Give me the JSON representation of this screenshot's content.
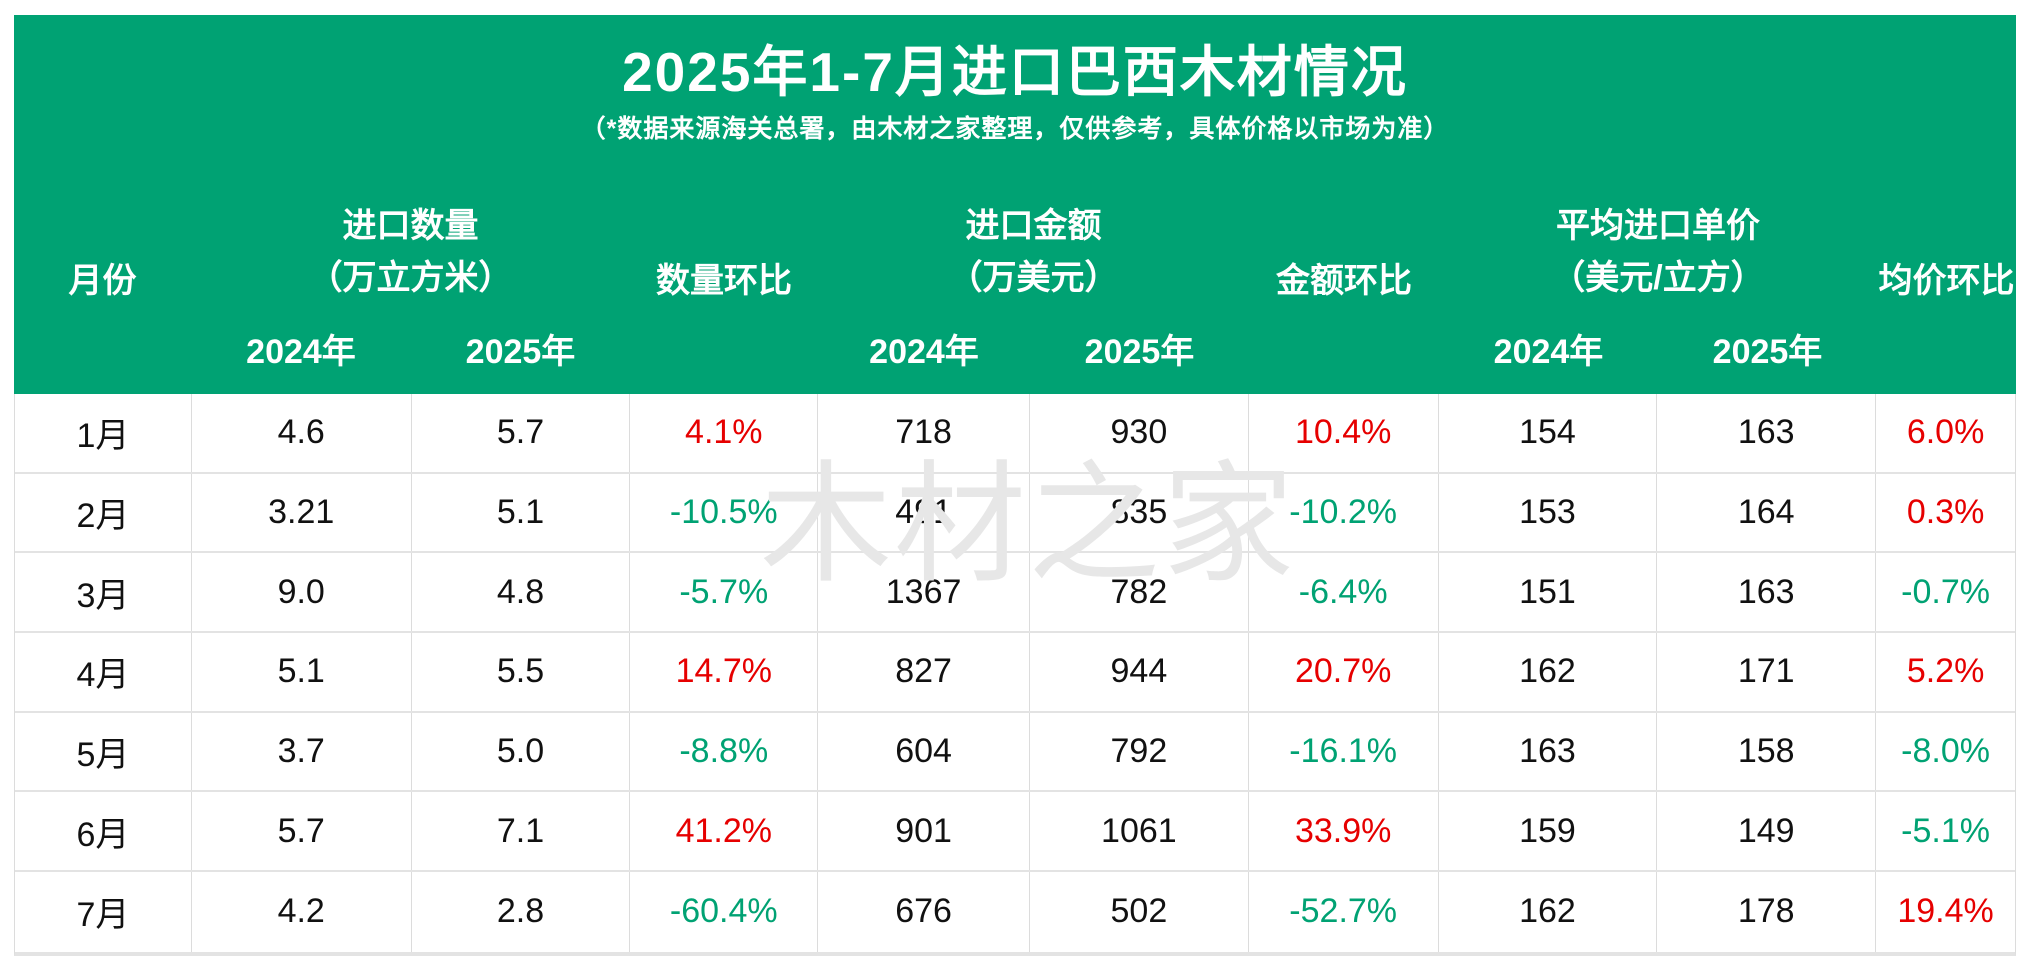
{
  "page": {
    "title": "2025年1-7月进口巴西木材情况",
    "subtitle": "（*数据来源海关总署，由木材之家整理，仅供参考，具体价格以市场为准）",
    "watermark": "木材之家"
  },
  "colors": {
    "header_green": "#00a273",
    "increase_red": "#e60000",
    "decrease_green": "#00a273",
    "grid_line": "#dcdcdc",
    "body_text": "#111111"
  },
  "header": {
    "month": "月份",
    "groups": [
      {
        "label": "进口数量",
        "unit": "（万立方米）"
      },
      {
        "label": "进口金额",
        "unit": "（万美元）"
      },
      {
        "label": "平均进口单价",
        "unit": "（美元/立方）"
      }
    ],
    "ratios": [
      "数量环比",
      "金额环比",
      "均价环比"
    ],
    "years": [
      "2024年",
      "2025年"
    ]
  },
  "rows": [
    {
      "month": "1月",
      "q24": "4.6",
      "q25": "5.7",
      "qmom": "4.1%",
      "a24": "718",
      "a25": "930",
      "amom": "10.4%",
      "p24": "154",
      "p25": "163",
      "pmom": "6.0%"
    },
    {
      "month": "2月",
      "q24": "3.21",
      "q25": "5.1",
      "qmom": "-10.5%",
      "a24": "491",
      "a25": "835",
      "amom": "-10.2%",
      "p24": "153",
      "p25": "164",
      "pmom": "0.3%"
    },
    {
      "month": "3月",
      "q24": "9.0",
      "q25": "4.8",
      "qmom": "-5.7%",
      "a24": "1367",
      "a25": "782",
      "amom": "-6.4%",
      "p24": "151",
      "p25": "163",
      "pmom": "-0.7%"
    },
    {
      "month": "4月",
      "q24": "5.1",
      "q25": "5.5",
      "qmom": "14.7%",
      "a24": "827",
      "a25": "944",
      "amom": "20.7%",
      "p24": "162",
      "p25": "171",
      "pmom": "5.2%"
    },
    {
      "month": "5月",
      "q24": "3.7",
      "q25": "5.0",
      "qmom": "-8.8%",
      "a24": "604",
      "a25": "792",
      "amom": "-16.1%",
      "p24": "163",
      "p25": "158",
      "pmom": "-8.0%"
    },
    {
      "month": "6月",
      "q24": "5.7",
      "q25": "7.1",
      "qmom": "41.2%",
      "a24": "901",
      "a25": "1061",
      "amom": "33.9%",
      "p24": "159",
      "p25": "149",
      "pmom": "-5.1%"
    },
    {
      "month": "7月",
      "q24": "4.2",
      "q25": "2.8",
      "qmom": "-60.4%",
      "a24": "676",
      "a25": "502",
      "amom": "-52.7%",
      "p24": "162",
      "p25": "178",
      "pmom": "19.4%"
    }
  ],
  "chart_data": {
    "type": "table",
    "title": "2025年1-7月进口巴西木材情况",
    "subtitle": "（*数据来源海关总署，由木材之家整理，仅供参考，具体价格以市场为准）",
    "categories": [
      "1月",
      "2月",
      "3月",
      "4月",
      "5月",
      "6月",
      "7月"
    ],
    "series": [
      {
        "name": "进口数量 2024年（万立方米）",
        "values": [
          4.6,
          3.21,
          9.0,
          5.1,
          3.7,
          5.7,
          4.2
        ]
      },
      {
        "name": "进口数量 2025年（万立方米）",
        "values": [
          5.7,
          5.1,
          4.8,
          5.5,
          5.0,
          7.1,
          2.8
        ]
      },
      {
        "name": "数量环比",
        "values": [
          "4.1%",
          "-10.5%",
          "-5.7%",
          "14.7%",
          "-8.8%",
          "41.2%",
          "-60.4%"
        ]
      },
      {
        "name": "进口金额 2024年（万美元）",
        "values": [
          718,
          491,
          1367,
          827,
          604,
          901,
          676
        ]
      },
      {
        "name": "进口金额 2025年（万美元）",
        "values": [
          930,
          835,
          782,
          944,
          792,
          1061,
          502
        ]
      },
      {
        "name": "金额环比",
        "values": [
          "10.4%",
          "-10.2%",
          "-6.4%",
          "20.7%",
          "-16.1%",
          "33.9%",
          "-52.7%"
        ]
      },
      {
        "name": "平均进口单价 2024年（美元/立方）",
        "values": [
          154,
          153,
          151,
          162,
          163,
          159,
          162
        ]
      },
      {
        "name": "平均进口单价 2025年（美元/立方）",
        "values": [
          163,
          164,
          163,
          171,
          158,
          149,
          178
        ]
      },
      {
        "name": "均价环比",
        "values": [
          "6.0%",
          "0.3%",
          "-0.7%",
          "5.2%",
          "-8.0%",
          "-5.1%",
          "19.4%"
        ]
      }
    ],
    "legend_note": "正值红色，负值绿色"
  }
}
